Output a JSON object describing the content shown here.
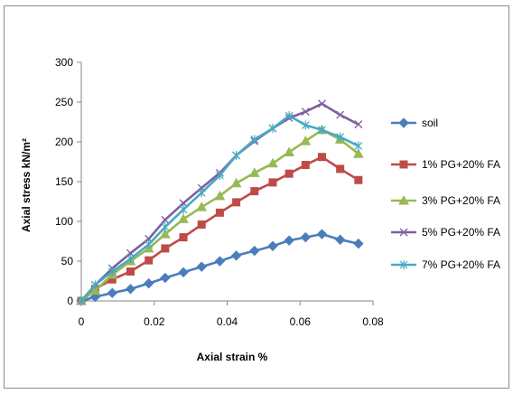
{
  "chart_data": {
    "type": "line",
    "title": "",
    "xlabel": "Axial strain  %",
    "ylabel": "Axial stress kN/m²",
    "xlim": [
      0,
      0.08
    ],
    "ylim": [
      0,
      300
    ],
    "xticks": [
      0,
      0.02,
      0.04,
      0.06,
      0.08
    ],
    "xtick_labels": [
      "0",
      "0.02",
      "0.04",
      "0.06",
      "0.08"
    ],
    "yticks": [
      0,
      50,
      100,
      150,
      200,
      250,
      300
    ],
    "ytick_labels": [
      "0",
      "50",
      "100",
      "150",
      "200",
      "250",
      "300"
    ],
    "grid": false,
    "legend_position": "right",
    "series": [
      {
        "name": "soil",
        "color": "#4a7ebb",
        "marker": "diamond",
        "points": [
          [
            0,
            0
          ],
          [
            0.0038,
            5
          ],
          [
            0.0085,
            10
          ],
          [
            0.0135,
            15
          ],
          [
            0.0185,
            22
          ],
          [
            0.023,
            29
          ],
          [
            0.028,
            36
          ],
          [
            0.033,
            43
          ],
          [
            0.038,
            50
          ],
          [
            0.0425,
            57
          ],
          [
            0.0475,
            63
          ],
          [
            0.0525,
            69
          ],
          [
            0.057,
            76
          ],
          [
            0.0615,
            80
          ],
          [
            0.066,
            84
          ],
          [
            0.071,
            77
          ],
          [
            0.076,
            72
          ]
        ]
      },
      {
        "name": "1%  PG+20% FA",
        "color": "#be4b48",
        "marker": "square",
        "points": [
          [
            0,
            0
          ],
          [
            0.0038,
            15
          ],
          [
            0.0085,
            27
          ],
          [
            0.0135,
            37
          ],
          [
            0.0185,
            51
          ],
          [
            0.023,
            66
          ],
          [
            0.028,
            80
          ],
          [
            0.033,
            96
          ],
          [
            0.038,
            111
          ],
          [
            0.0425,
            124
          ],
          [
            0.0475,
            138
          ],
          [
            0.0525,
            149
          ],
          [
            0.057,
            160
          ],
          [
            0.0615,
            171
          ],
          [
            0.066,
            181
          ],
          [
            0.071,
            166
          ],
          [
            0.076,
            152
          ]
        ]
      },
      {
        "name": "3% PG+20% FA",
        "color": "#98b954",
        "marker": "triangle",
        "points": [
          [
            0,
            0
          ],
          [
            0.0038,
            13
          ],
          [
            0.0085,
            33
          ],
          [
            0.0135,
            50
          ],
          [
            0.0185,
            66
          ],
          [
            0.023,
            84
          ],
          [
            0.028,
            103
          ],
          [
            0.033,
            118
          ],
          [
            0.038,
            132
          ],
          [
            0.0425,
            148
          ],
          [
            0.0475,
            161
          ],
          [
            0.0525,
            173
          ],
          [
            0.057,
            187
          ],
          [
            0.0615,
            201
          ],
          [
            0.066,
            215
          ],
          [
            0.071,
            203
          ],
          [
            0.076,
            185
          ]
        ]
      },
      {
        "name": "5% PG+20% FA",
        "color": "#7d60a0",
        "marker": "x",
        "points": [
          [
            0,
            0
          ],
          [
            0.0038,
            20
          ],
          [
            0.0085,
            41
          ],
          [
            0.0135,
            60
          ],
          [
            0.0185,
            78
          ],
          [
            0.023,
            102
          ],
          [
            0.028,
            123
          ],
          [
            0.033,
            142
          ],
          [
            0.038,
            161
          ],
          [
            0.0425,
            183
          ],
          [
            0.0475,
            201
          ],
          [
            0.0525,
            217
          ],
          [
            0.057,
            230
          ],
          [
            0.0615,
            238
          ],
          [
            0.066,
            248
          ],
          [
            0.071,
            234
          ],
          [
            0.076,
            222
          ]
        ]
      },
      {
        "name": "7% PG+20% FA",
        "color": "#46aac5",
        "marker": "asterisk",
        "points": [
          [
            0,
            0
          ],
          [
            0.0038,
            20
          ],
          [
            0.0085,
            37
          ],
          [
            0.0135,
            53
          ],
          [
            0.0185,
            71
          ],
          [
            0.023,
            93
          ],
          [
            0.028,
            115
          ],
          [
            0.033,
            136
          ],
          [
            0.038,
            158
          ],
          [
            0.0425,
            183
          ],
          [
            0.0475,
            203
          ],
          [
            0.0525,
            217
          ],
          [
            0.057,
            233
          ],
          [
            0.0615,
            221
          ],
          [
            0.066,
            215
          ],
          [
            0.071,
            206
          ],
          [
            0.076,
            195
          ]
        ]
      }
    ]
  }
}
